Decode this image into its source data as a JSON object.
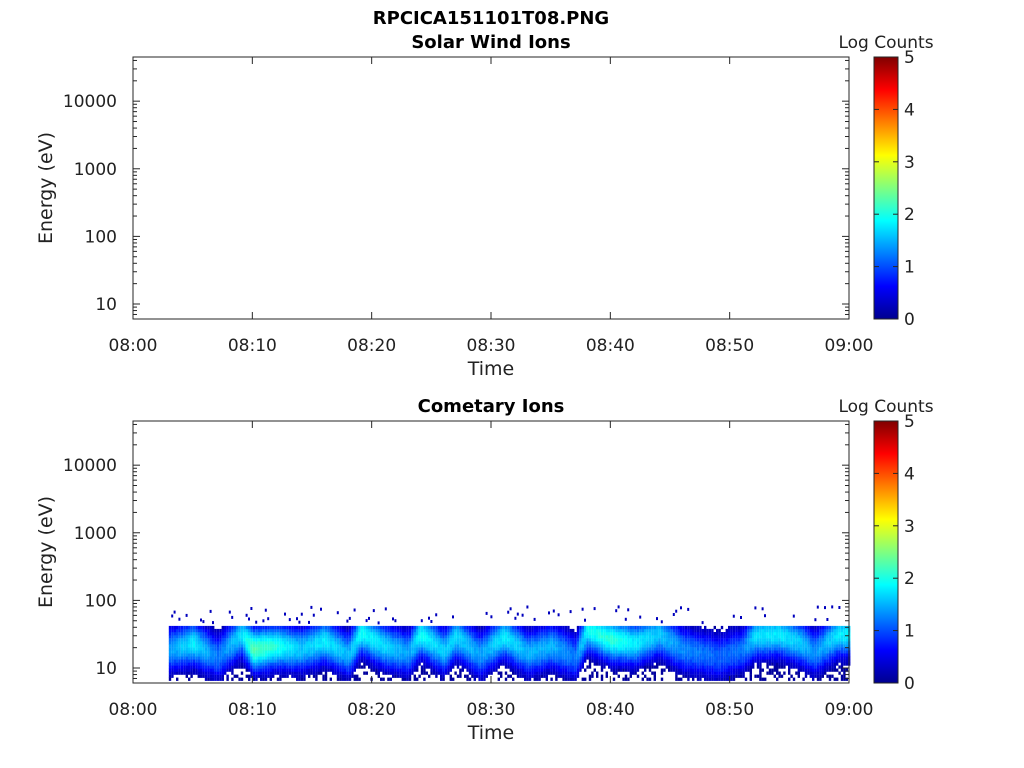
{
  "figure": {
    "title": "RPCICA151101T08.PNG"
  },
  "chart_data": [
    {
      "type": "heatmap",
      "title": "Solar Wind Ions",
      "xlabel": "Time",
      "ylabel": "Energy (eV)",
      "x_ticks": [
        "08:00",
        "08:10",
        "08:20",
        "08:30",
        "08:40",
        "08:50",
        "09:00"
      ],
      "xlim": [
        "08:00",
        "09:00"
      ],
      "y_scale": "log",
      "y_ticks": [
        "10",
        "100",
        "1000",
        "10000"
      ],
      "ylim": [
        6,
        45000
      ],
      "colorbar": {
        "label": "Log Counts",
        "range": [
          0,
          5
        ],
        "ticks": [
          "0",
          "1",
          "2",
          "3",
          "4",
          "5"
        ],
        "colormap": "jet"
      },
      "intensity_profile": []
    },
    {
      "type": "heatmap",
      "title": "Cometary Ions",
      "xlabel": "Time",
      "ylabel": "Energy (eV)",
      "x_ticks": [
        "08:00",
        "08:10",
        "08:20",
        "08:30",
        "08:40",
        "08:50",
        "09:00"
      ],
      "xlim": [
        "08:00",
        "09:00"
      ],
      "y_scale": "log",
      "y_ticks": [
        "10",
        "100",
        "1000",
        "10000"
      ],
      "ylim": [
        6,
        45000
      ],
      "colorbar": {
        "label": "Log Counts",
        "range": [
          0,
          5
        ],
        "ticks": [
          "0",
          "1",
          "2",
          "3",
          "4",
          "5"
        ],
        "colormap": "jet"
      },
      "intensity_profile": [
        {
          "time": "08:03",
          "peak_energy_eV": 18,
          "peak_log_counts": 1.4
        },
        {
          "time": "08:05",
          "peak_energy_eV": 22,
          "peak_log_counts": 1.8
        },
        {
          "time": "08:07",
          "peak_energy_eV": 14,
          "peak_log_counts": 1.2
        },
        {
          "time": "08:09",
          "peak_energy_eV": 30,
          "peak_log_counts": 1.7
        },
        {
          "time": "08:10",
          "peak_energy_eV": 18,
          "peak_log_counts": 2.3
        },
        {
          "time": "08:12",
          "peak_energy_eV": 20,
          "peak_log_counts": 2.0
        },
        {
          "time": "08:14",
          "peak_energy_eV": 18,
          "peak_log_counts": 1.6
        },
        {
          "time": "08:16",
          "peak_energy_eV": 24,
          "peak_log_counts": 1.8
        },
        {
          "time": "08:18",
          "peak_energy_eV": 15,
          "peak_log_counts": 1.5
        },
        {
          "time": "08:19",
          "peak_energy_eV": 32,
          "peak_log_counts": 1.9
        },
        {
          "time": "08:21",
          "peak_energy_eV": 20,
          "peak_log_counts": 1.7
        },
        {
          "time": "08:23",
          "peak_energy_eV": 16,
          "peak_log_counts": 1.4
        },
        {
          "time": "08:24",
          "peak_energy_eV": 30,
          "peak_log_counts": 1.9
        },
        {
          "time": "08:26",
          "peak_energy_eV": 17,
          "peak_log_counts": 1.6
        },
        {
          "time": "08:27",
          "peak_energy_eV": 28,
          "peak_log_counts": 1.7
        },
        {
          "time": "08:29",
          "peak_energy_eV": 15,
          "peak_log_counts": 1.4
        },
        {
          "time": "08:31",
          "peak_energy_eV": 28,
          "peak_log_counts": 1.8
        },
        {
          "time": "08:33",
          "peak_energy_eV": 16,
          "peak_log_counts": 1.5
        },
        {
          "time": "08:35",
          "peak_energy_eV": 20,
          "peak_log_counts": 1.5
        },
        {
          "time": "08:37",
          "peak_energy_eV": 14,
          "peak_log_counts": 1.2
        },
        {
          "time": "08:38",
          "peak_energy_eV": 35,
          "peak_log_counts": 1.9
        },
        {
          "time": "08:40",
          "peak_energy_eV": 25,
          "peak_log_counts": 2.1
        },
        {
          "time": "08:42",
          "peak_energy_eV": 22,
          "peak_log_counts": 1.8
        },
        {
          "time": "08:44",
          "peak_energy_eV": 30,
          "peak_log_counts": 1.6
        },
        {
          "time": "08:46",
          "peak_energy_eV": 18,
          "peak_log_counts": 1.3
        },
        {
          "time": "08:49",
          "peak_energy_eV": 14,
          "peak_log_counts": 1.1
        },
        {
          "time": "08:51",
          "peak_energy_eV": 18,
          "peak_log_counts": 1.2
        },
        {
          "time": "08:52",
          "peak_energy_eV": 28,
          "peak_log_counts": 1.7
        },
        {
          "time": "08:54",
          "peak_energy_eV": 30,
          "peak_log_counts": 1.8
        },
        {
          "time": "08:56",
          "peak_energy_eV": 22,
          "peak_log_counts": 1.6
        },
        {
          "time": "08:57",
          "peak_energy_eV": 16,
          "peak_log_counts": 1.3
        },
        {
          "time": "08:59",
          "peak_energy_eV": 30,
          "peak_log_counts": 1.8
        }
      ]
    }
  ]
}
